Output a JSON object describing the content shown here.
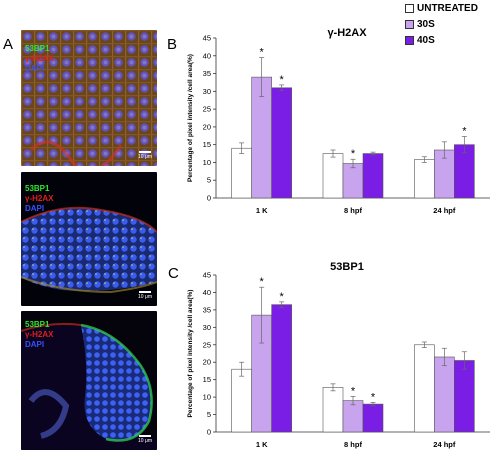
{
  "panels": {
    "a": "A",
    "b": "B",
    "c": "C"
  },
  "images": [
    {
      "labels": [
        {
          "text": "53BP1",
          "color": "#2ee82e"
        },
        {
          "text": "γ-H2AX",
          "color": "#e02020"
        },
        {
          "text": "DAPI",
          "color": "#3a50ff"
        }
      ],
      "scale_text": "10 μm"
    },
    {
      "labels": [
        {
          "text": "53BP1",
          "color": "#2ee82e"
        },
        {
          "text": "γ-H2AX",
          "color": "#e02020"
        },
        {
          "text": "DAPI",
          "color": "#3a50ff"
        }
      ],
      "scale_text": "10 μm"
    },
    {
      "labels": [
        {
          "text": "53BP1",
          "color": "#2ee82e"
        },
        {
          "text": "γ-H2AX",
          "color": "#e02020"
        },
        {
          "text": "DAPI",
          "color": "#3a50ff"
        }
      ],
      "scale_text": "10 μm"
    }
  ],
  "legend": [
    {
      "label": "UNTREATED",
      "color": "#ffffff"
    },
    {
      "label": "30S",
      "color": "#c9a4ee"
    },
    {
      "label": "40S",
      "color": "#7a1ee6"
    }
  ],
  "chart_data": [
    {
      "type": "bar",
      "title": "γ-H2AX",
      "ylabel": "Percentage of pixel intensity /cell area(%)",
      "xlabel": "",
      "ylim": [
        0,
        45
      ],
      "yticks": [
        0,
        5,
        10,
        15,
        20,
        25,
        30,
        35,
        40,
        45
      ],
      "categories": [
        "1 K",
        "8 hpf",
        "24 hpf"
      ],
      "series": [
        {
          "name": "UNTREATED",
          "color": "#ffffff",
          "values": [
            14.0,
            12.5,
            10.8
          ],
          "errors": [
            1.5,
            1.0,
            0.8
          ]
        },
        {
          "name": "30S",
          "color": "#c9a4ee",
          "values": [
            34.0,
            9.7,
            13.5
          ],
          "errors": [
            5.5,
            1.2,
            2.3
          ]
        },
        {
          "name": "40S",
          "color": "#7a1ee6",
          "values": [
            31.0,
            12.5,
            15.0
          ],
          "errors": [
            0.8,
            0.4,
            2.3
          ]
        }
      ],
      "significance": [
        {
          "category": 0,
          "series": 1,
          "mark": "*"
        },
        {
          "category": 0,
          "series": 2,
          "mark": "*"
        },
        {
          "category": 1,
          "series": 1,
          "mark": "*"
        },
        {
          "category": 2,
          "series": 2,
          "mark": "*"
        }
      ],
      "grid": false
    },
    {
      "type": "bar",
      "title": "53BP1",
      "ylabel": "Percentage of pixel intensity /cell area(%)",
      "xlabel": "",
      "ylim": [
        0,
        45
      ],
      "yticks": [
        0,
        5,
        10,
        15,
        20,
        25,
        30,
        35,
        40,
        45
      ],
      "categories": [
        "1 K",
        "8 hpf",
        "24 hpf"
      ],
      "series": [
        {
          "name": "UNTREATED",
          "color": "#ffffff",
          "values": [
            18.0,
            12.8,
            25.0
          ],
          "errors": [
            2.0,
            1.0,
            0.8
          ]
        },
        {
          "name": "30S",
          "color": "#c9a4ee",
          "values": [
            33.5,
            9.0,
            21.5
          ],
          "errors": [
            8.0,
            1.2,
            2.5
          ]
        },
        {
          "name": "40S",
          "color": "#7a1ee6",
          "values": [
            36.5,
            8.0,
            20.5
          ],
          "errors": [
            0.8,
            0.5,
            2.5
          ]
        }
      ],
      "significance": [
        {
          "category": 0,
          "series": 1,
          "mark": "*"
        },
        {
          "category": 0,
          "series": 2,
          "mark": "*"
        },
        {
          "category": 1,
          "series": 1,
          "mark": "*"
        },
        {
          "category": 1,
          "series": 2,
          "mark": "*"
        }
      ],
      "grid": false
    }
  ]
}
